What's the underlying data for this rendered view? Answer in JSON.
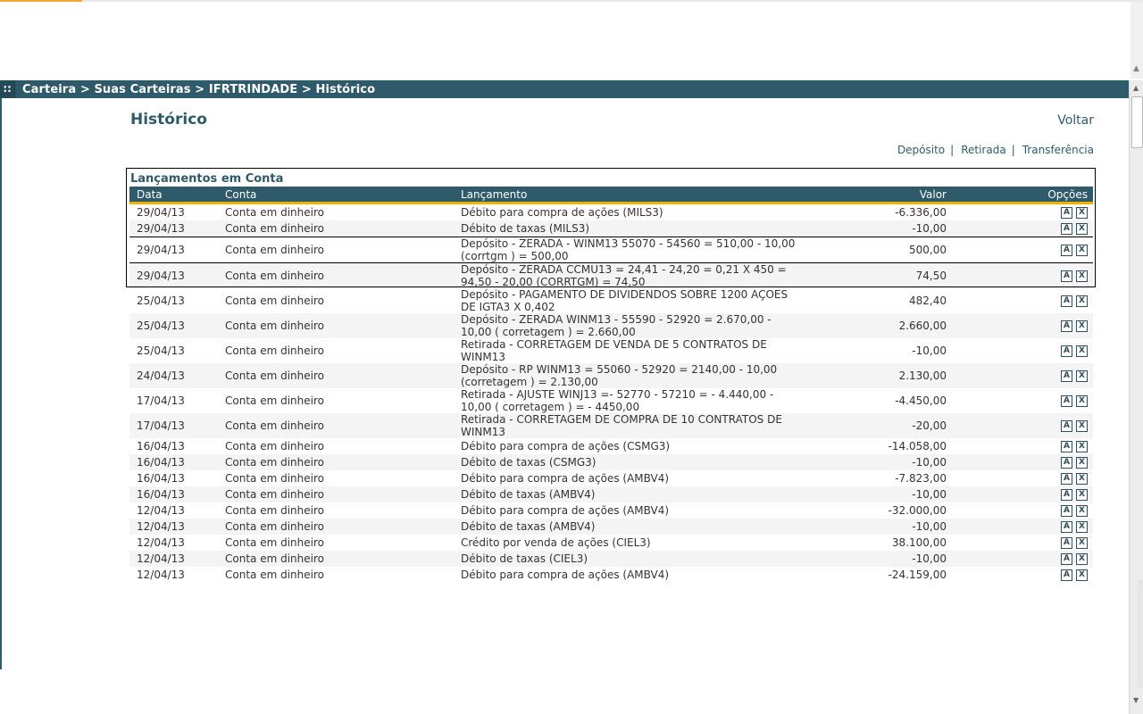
{
  "breadcrumb": "Carteira > Suas Carteiras > IFRTRINDADE > Histórico",
  "page": {
    "title": "Histórico",
    "back_label": "Voltar",
    "actions": {
      "deposit": "Depósito",
      "withdraw": "Retirada",
      "transfer": "Transferência",
      "separator": "|"
    }
  },
  "panel": {
    "title": "Lançamentos em Conta"
  },
  "table": {
    "headers": {
      "date": "Data",
      "account": "Conta",
      "entry": "Lançamento",
      "value": "Valor",
      "options": "Opções"
    },
    "option_icons": {
      "edit": "A",
      "delete": "X"
    },
    "colors": {
      "negative": "#cc0000",
      "positive": "#008000",
      "header_bg": "#2f5a6a",
      "header_rule": "#f0b400"
    },
    "rows": [
      {
        "date": "29/04/13",
        "account": "Conta em dinheiro",
        "entry": "Débito para compra de ações (MILS3)",
        "value": "-6.336,00",
        "sign": "neg"
      },
      {
        "date": "29/04/13",
        "account": "Conta em dinheiro",
        "entry": "Débito de taxas (MILS3)",
        "value": "-10,00",
        "sign": "neg"
      },
      {
        "date": "29/04/13",
        "account": "Conta em dinheiro",
        "entry": "Depósito - ZERADA - WINM13 55070 - 54560 = 510,00 - 10,00 (corrtgm ) = 500,00",
        "value": "500,00",
        "sign": "pos"
      },
      {
        "date": "29/04/13",
        "account": "Conta em dinheiro",
        "entry": "Depósito - ZERADA CCMU13 = 24,41 - 24,20 = 0,21 X 450 = 94,50 - 20,00 (CORRTGM) = 74,50",
        "value": "74,50",
        "sign": "pos"
      },
      {
        "date": "25/04/13",
        "account": "Conta em dinheiro",
        "entry": "Depósito - PAGAMENTO DE DIVIDENDOS SOBRE 1200 AÇOES DE IGTA3 X 0,402",
        "value": "482,40",
        "sign": "pos"
      },
      {
        "date": "25/04/13",
        "account": "Conta em dinheiro",
        "entry": "Depósito - ZERADA WINM13 - 55590 - 52920 = 2.670,00 - 10,00 ( corretagem ) = 2.660,00",
        "value": "2.660,00",
        "sign": "pos"
      },
      {
        "date": "25/04/13",
        "account": "Conta em dinheiro",
        "entry": "Retirada - CORRETAGEM DE VENDA DE 5 CONTRATOS DE WINM13",
        "value": "-10,00",
        "sign": "neg"
      },
      {
        "date": "24/04/13",
        "account": "Conta em dinheiro",
        "entry": "Depósito - RP WINM13 = 55060 - 52920 = 2140,00 - 10,00 (corretagem ) = 2.130,00",
        "value": "2.130,00",
        "sign": "pos"
      },
      {
        "date": "17/04/13",
        "account": "Conta em dinheiro",
        "entry": "Retirada - AJUSTE WINJ13 =- 52770 - 57210 = - 4.440,00 - 10,00 ( corretagem ) = - 4450,00",
        "value": "-4.450,00",
        "sign": "neg"
      },
      {
        "date": "17/04/13",
        "account": "Conta em dinheiro",
        "entry": "Retirada - CORRETAGEM DE COMPRA DE 10 CONTRATOS DE WINM13",
        "value": "-20,00",
        "sign": "neg"
      },
      {
        "date": "16/04/13",
        "account": "Conta em dinheiro",
        "entry": "Débito para compra de ações (CSMG3)",
        "value": "-14.058,00",
        "sign": "neg"
      },
      {
        "date": "16/04/13",
        "account": "Conta em dinheiro",
        "entry": "Débito de taxas (CSMG3)",
        "value": "-10,00",
        "sign": "neg"
      },
      {
        "date": "16/04/13",
        "account": "Conta em dinheiro",
        "entry": "Débito para compra de ações (AMBV4)",
        "value": "-7.823,00",
        "sign": "neg"
      },
      {
        "date": "16/04/13",
        "account": "Conta em dinheiro",
        "entry": "Débito de taxas (AMBV4)",
        "value": "-10,00",
        "sign": "neg"
      },
      {
        "date": "12/04/13",
        "account": "Conta em dinheiro",
        "entry": "Débito para compra de ações (AMBV4)",
        "value": "-32.000,00",
        "sign": "neg"
      },
      {
        "date": "12/04/13",
        "account": "Conta em dinheiro",
        "entry": "Débito de taxas (AMBV4)",
        "value": "-10,00",
        "sign": "neg"
      },
      {
        "date": "12/04/13",
        "account": "Conta em dinheiro",
        "entry": "Crédito por venda de ações (CIEL3)",
        "value": "38.100,00",
        "sign": "pos"
      },
      {
        "date": "12/04/13",
        "account": "Conta em dinheiro",
        "entry": "Débito de taxas (CIEL3)",
        "value": "-10,00",
        "sign": "neg"
      },
      {
        "date": "12/04/13",
        "account": "Conta em dinheiro",
        "entry": "Débito para compra de ações (AMBV4)",
        "value": "-24.159,00",
        "sign": "neg"
      }
    ]
  }
}
